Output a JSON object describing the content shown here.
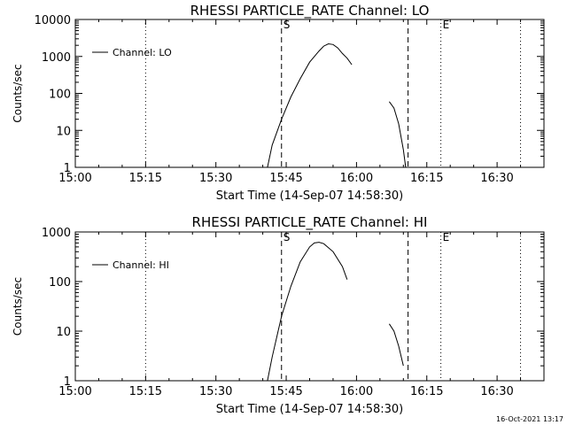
{
  "chart_data": [
    {
      "type": "line",
      "title": "RHESSI PARTICLE_RATE Channel: LO",
      "xlabel": "Start Time (14-Sep-07 14:58:30)",
      "ylabel": "Counts/sec",
      "xlim": [
        "15:00",
        "16:40"
      ],
      "ylim": [
        1,
        10000
      ],
      "yscale": "log",
      "x_ticks": [
        "15:00",
        "15:15",
        "15:30",
        "15:45",
        "16:00",
        "16:15",
        "16:30"
      ],
      "y_ticks": [
        "1",
        "10",
        "100",
        "1000",
        "10000"
      ],
      "legend": {
        "position": "top-left",
        "entries": [
          "Channel: LO"
        ]
      },
      "vlines": [
        {
          "x": "15:15",
          "style": "dotted"
        },
        {
          "x": "15:44",
          "style": "dashed",
          "label": "S"
        },
        {
          "x": "16:11",
          "style": "dashed"
        },
        {
          "x": "16:18",
          "style": "dotted",
          "label": "E"
        },
        {
          "x": "16:35",
          "style": "dotted"
        }
      ],
      "series": [
        {
          "name": "Channel: LO",
          "segments": [
            [
              [
                "15:41",
                1
              ],
              [
                "15:42",
                4
              ],
              [
                "15:44",
                20
              ],
              [
                "15:46",
                80
              ],
              [
                "15:48",
                250
              ],
              [
                "15:50",
                700
              ],
              [
                "15:52",
                1400
              ],
              [
                "15:53",
                1900
              ],
              [
                "15:54",
                2200
              ],
              [
                "15:55",
                2100
              ],
              [
                "15:56",
                1700
              ],
              [
                "15:57",
                1200
              ],
              [
                "15:58",
                900
              ],
              [
                "15:59",
                600
              ]
            ],
            [
              [
                "16:07",
                60
              ],
              [
                "16:08",
                40
              ],
              [
                "16:09",
                15
              ],
              [
                "16:10",
                3
              ],
              [
                "16:10.5",
                1
              ]
            ]
          ]
        }
      ]
    },
    {
      "type": "line",
      "title": "RHESSI PARTICLE_RATE Channel: HI",
      "xlabel": "Start Time (14-Sep-07 14:58:30)",
      "ylabel": "Counts/sec",
      "xlim": [
        "15:00",
        "16:40"
      ],
      "ylim": [
        1,
        1000
      ],
      "yscale": "log",
      "x_ticks": [
        "15:00",
        "15:15",
        "15:30",
        "15:45",
        "16:00",
        "16:15",
        "16:30"
      ],
      "y_ticks": [
        "1",
        "10",
        "100",
        "1000"
      ],
      "legend": {
        "position": "top-left",
        "entries": [
          "Channel: HI"
        ]
      },
      "vlines": [
        {
          "x": "15:15",
          "style": "dotted"
        },
        {
          "x": "15:44",
          "style": "dashed",
          "label": "S"
        },
        {
          "x": "16:11",
          "style": "dashed"
        },
        {
          "x": "16:18",
          "style": "dotted",
          "label": "E"
        },
        {
          "x": "16:35",
          "style": "dotted"
        }
      ],
      "series": [
        {
          "name": "Channel: HI",
          "segments": [
            [
              [
                "15:41",
                1
              ],
              [
                "15:42",
                3
              ],
              [
                "15:44",
                20
              ],
              [
                "15:46",
                80
              ],
              [
                "15:48",
                250
              ],
              [
                "15:50",
                500
              ],
              [
                "15:51",
                600
              ],
              [
                "15:52",
                620
              ],
              [
                "15:53",
                580
              ],
              [
                "15:55",
                400
              ],
              [
                "15:57",
                200
              ],
              [
                "15:58",
                110
              ]
            ],
            [
              [
                "16:07",
                14
              ],
              [
                "16:08",
                10
              ],
              [
                "16:09",
                5
              ],
              [
                "16:10",
                2
              ]
            ]
          ]
        }
      ]
    }
  ],
  "footer": {
    "date": "16-Oct-2021 13:17"
  }
}
